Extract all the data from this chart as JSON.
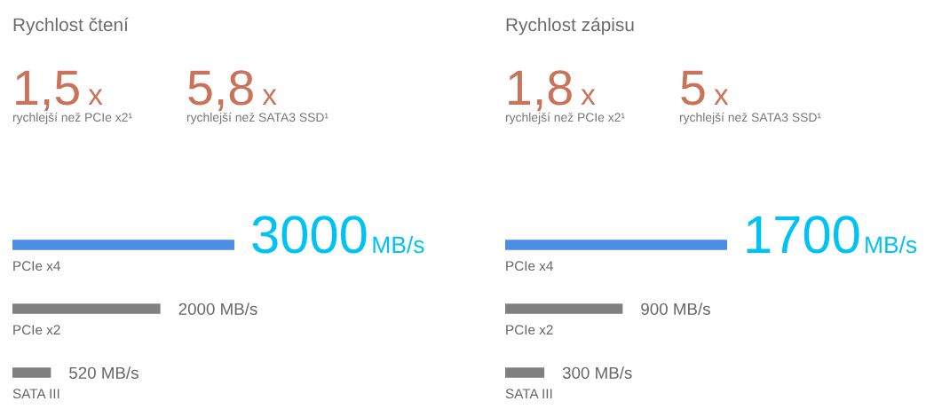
{
  "chart_data": [
    {
      "type": "bar",
      "orientation": "horizontal",
      "title": "Rychlost čtení",
      "annotations": [
        "1,5 x",
        "rychlejší než PCIe x2¹",
        "5,8 x",
        "rychlejší než SATA3 SSD¹"
      ],
      "categories": [
        "PCIe x4",
        "PCIe x2",
        "SATA III"
      ],
      "values": [
        3000,
        2000,
        520
      ],
      "value_labels": [
        "3000 MB/s",
        "2000 MB/s",
        "520 MB/s"
      ],
      "colors": [
        "#4a8ee6",
        "#808080",
        "#808080"
      ]
    },
    {
      "type": "bar",
      "orientation": "horizontal",
      "title": "Rychlost zápisu",
      "annotations": [
        "1,8 x",
        "rychlejší než PCIe x2¹",
        "5 x",
        "rychlejší než SATA3 SSD¹"
      ],
      "categories": [
        "PCIe x4",
        "PCIe x2",
        "SATA III"
      ],
      "values": [
        1700,
        900,
        300
      ],
      "value_labels": [
        "1700 MB/s",
        "900 MB/s",
        "300 MB/s"
      ],
      "colors": [
        "#4a8ee6",
        "#808080",
        "#808080"
      ]
    }
  ]
}
